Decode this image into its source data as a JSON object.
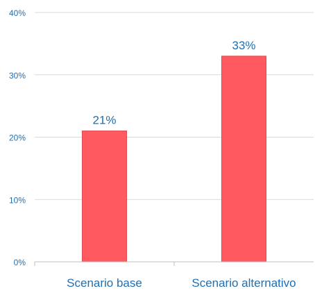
{
  "chart_data": {
    "type": "bar",
    "categories": [
      "Scenario base",
      "Scenario alternativo"
    ],
    "values": [
      21,
      33
    ],
    "value_labels": [
      "21%",
      "33%"
    ],
    "title": "",
    "xlabel": "",
    "ylabel": "",
    "ylim": [
      0,
      40
    ],
    "yticks": [
      0,
      10,
      20,
      30,
      40
    ],
    "ytick_labels": [
      "0%",
      "10%",
      "20%",
      "30%",
      "40%"
    ],
    "grid": true,
    "legend": "none",
    "colors": {
      "bar": "#ff5a5f",
      "bar_edge": "#e04a4f",
      "axis_text": "#1f6fb2",
      "value_label": "#1f6fb2",
      "category_label": "#1f6fb2",
      "grid": "#d9d9d9",
      "axis": "#bfbfbf"
    }
  }
}
